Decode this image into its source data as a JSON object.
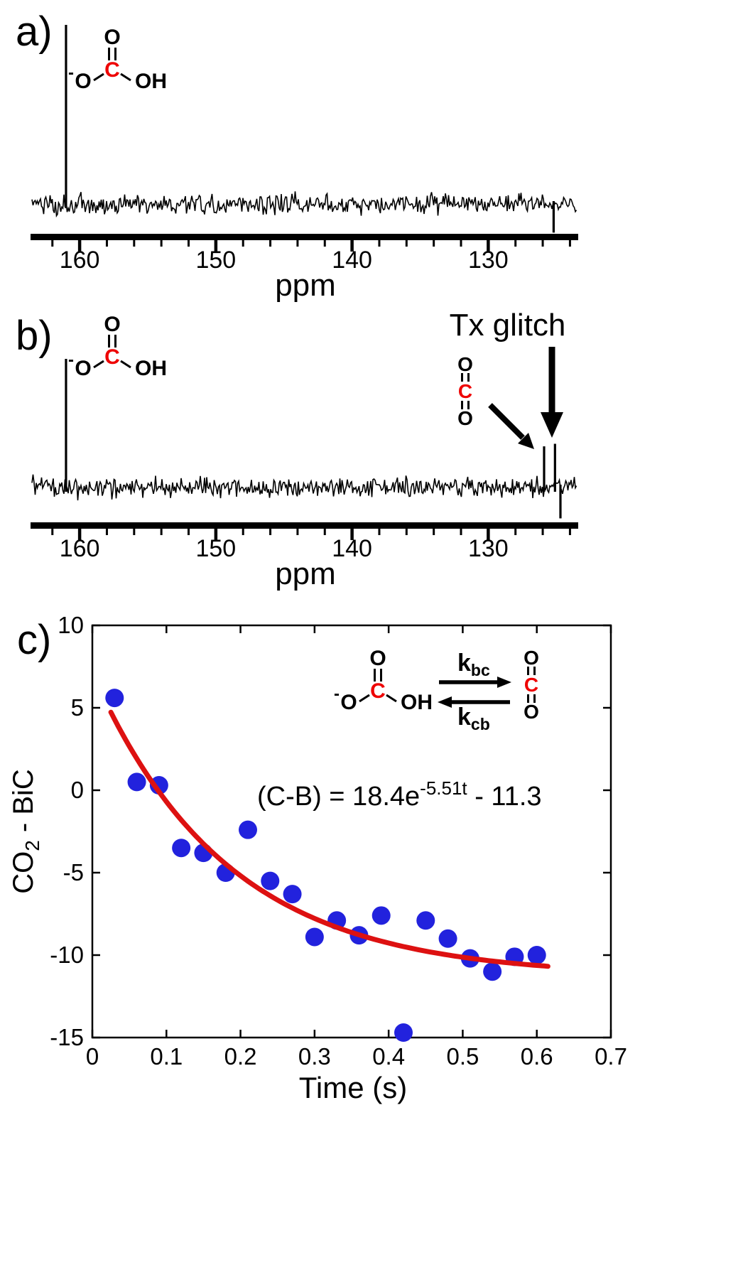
{
  "accent_colors": {
    "marker_blue": "#2222dd",
    "fit_red": "#dd1111",
    "atom_red": "#ee0000",
    "ink": "#000000"
  },
  "panels": {
    "a": {
      "label": "a)",
      "xlabel": "ppm"
    },
    "b": {
      "label": "b)",
      "xlabel": "ppm",
      "annotation": "Tx glitch"
    },
    "c": {
      "label": "c)",
      "xlabel": "Time (s)",
      "ylabel_parts": {
        "main": "CO",
        "sub": "2",
        "rest": " - BiC"
      },
      "equation": {
        "prefix": "(C-B) = 18.4e",
        "exponent": "-5.51t",
        "suffix": " - 11.3"
      },
      "rate_forward": {
        "symbol": "k",
        "sub": "bc"
      },
      "rate_reverse": {
        "symbol": "k",
        "sub": "cb"
      }
    }
  },
  "molecules": {
    "bicarbonate": {
      "top": "O",
      "center": "C",
      "left_charge": "-",
      "left": "O",
      "right": "OH"
    },
    "co2": {
      "top": "O",
      "center": "C",
      "bottom": "O"
    }
  },
  "chart_data": [
    {
      "id": "spectrum-a",
      "type": "line",
      "kind": "13C NMR spectrum",
      "xlabel": "ppm",
      "x_range": [
        163.5,
        123.5
      ],
      "x_ticks": [
        160,
        150,
        140,
        130
      ],
      "minor_tick_step": 2,
      "peaks": [
        {
          "ppm": 161.0,
          "rel_height": 1.0,
          "label": "bicarbonate"
        },
        {
          "ppm": 125.2,
          "rel_height": -0.16,
          "label": "artifact"
        }
      ]
    },
    {
      "id": "spectrum-b",
      "type": "line",
      "kind": "13C NMR spectrum",
      "xlabel": "ppm",
      "x_range": [
        163.5,
        123.5
      ],
      "x_ticks": [
        160,
        150,
        140,
        130
      ],
      "minor_tick_step": 2,
      "peaks": [
        {
          "ppm": 161.0,
          "rel_height": 1.0,
          "label": "bicarbonate"
        },
        {
          "ppm": 125.9,
          "rel_height": 0.32,
          "label": "CO2"
        },
        {
          "ppm": 125.1,
          "rel_height": 0.34,
          "label": "Tx-glitch"
        },
        {
          "ppm": 124.7,
          "rel_height": -0.24,
          "label": "artifact"
        }
      ]
    },
    {
      "id": "co2-bic-decay",
      "type": "scatter",
      "xlabel": "Time (s)",
      "ylabel": "CO2 - BiC",
      "xlim": [
        0,
        0.7
      ],
      "ylim": [
        -15,
        10
      ],
      "x_ticks": [
        {
          "v": 0,
          "label": "0"
        },
        {
          "v": 0.1,
          "label": "0.1"
        },
        {
          "v": 0.2,
          "label": "0.2"
        },
        {
          "v": 0.3,
          "label": "0.3"
        },
        {
          "v": 0.4,
          "label": "0.4"
        },
        {
          "v": 0.5,
          "label": "0.5"
        },
        {
          "v": 0.6,
          "label": "0.6"
        },
        {
          "v": 0.7,
          "label": "0.7"
        }
      ],
      "y_ticks": [
        {
          "v": 10,
          "label": "10"
        },
        {
          "v": 5,
          "label": "5"
        },
        {
          "v": 0,
          "label": "0"
        },
        {
          "v": -5,
          "label": "-5"
        },
        {
          "v": -10,
          "label": "-10"
        },
        {
          "v": -15,
          "label": "-15"
        }
      ],
      "x": [
        0.03,
        0.06,
        0.09,
        0.12,
        0.15,
        0.18,
        0.21,
        0.24,
        0.27,
        0.3,
        0.33,
        0.36,
        0.39,
        0.42,
        0.45,
        0.48,
        0.51,
        0.54,
        0.57,
        0.6
      ],
      "y": [
        5.6,
        0.5,
        0.3,
        -3.5,
        -3.8,
        -5.0,
        -2.4,
        -5.5,
        -6.3,
        -8.9,
        -7.9,
        -8.8,
        -7.6,
        -14.7,
        -7.9,
        -9.0,
        -10.2,
        -11.0,
        -10.1,
        -10.0
      ],
      "fit": {
        "model": "A*exp(-k*t)+C",
        "A": 18.4,
        "k": 5.51,
        "C": -11.3,
        "t_start": 0.025,
        "t_end": 0.615
      },
      "marker_color": "#2222dd",
      "fit_color": "#dd1111"
    }
  ]
}
